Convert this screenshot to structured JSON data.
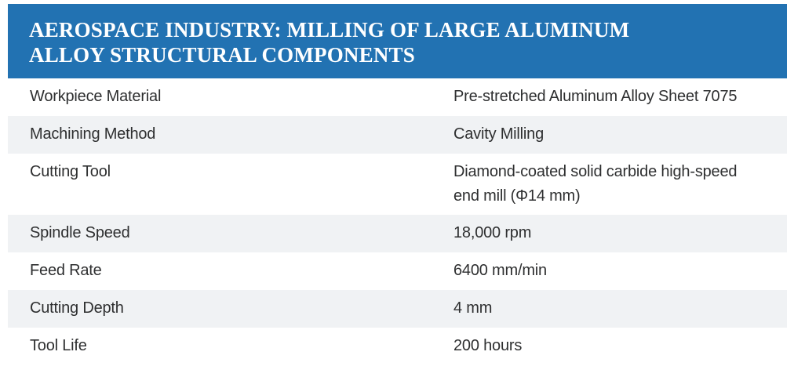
{
  "header": {
    "title_lines": [
      "AEROSPACE INDUSTRY: MILLING OF LARGE ALUMINUM",
      "ALLOY STRUCTURAL COMPONENTS"
    ]
  },
  "table": {
    "rows": [
      {
        "label": "Workpiece Material",
        "value": "Pre-stretched Aluminum Alloy Sheet 7075"
      },
      {
        "label": "Machining Method",
        "value": "Cavity Milling"
      },
      {
        "label": "Cutting Tool",
        "value": "Diamond-coated solid carbide high-speed end mill (Φ14 mm)"
      },
      {
        "label": "Spindle Speed",
        "value": "18,000 rpm"
      },
      {
        "label": "Feed Rate",
        "value": "6400 mm/min"
      },
      {
        "label": "Cutting Depth",
        "value": "4 mm"
      },
      {
        "label": "Tool Life",
        "value": "200 hours"
      }
    ]
  },
  "colors": {
    "header_bg": "#2272B2",
    "header_text": "#FFFFFF",
    "stripe": "#F0F2F4",
    "body_text": "#2E2F30",
    "page_bg": "#FFFFFF"
  }
}
